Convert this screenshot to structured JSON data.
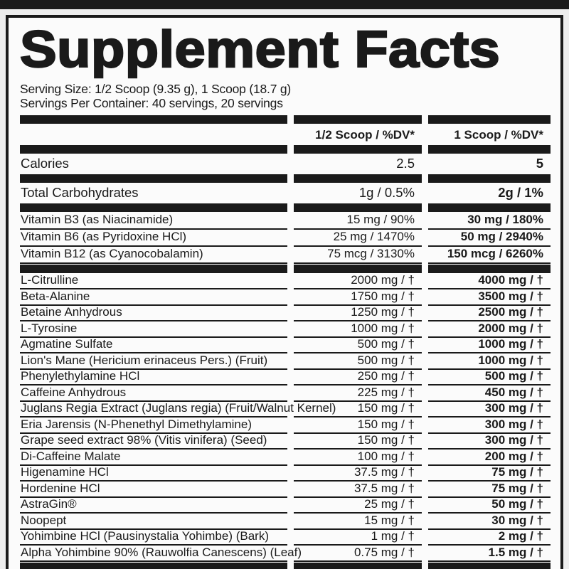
{
  "colors": {
    "ink": "#1a1a1a",
    "paper": "#fbfbfb",
    "page_background": "#ededed"
  },
  "label": {
    "title": "Supplement Facts",
    "serving_size": "Serving Size: 1/2 Scoop (9.35 g), 1 Scoop (18.7 g)",
    "servings_per_container": "Servings Per Container: 40 servings, 20 servings",
    "columns": [
      "1/2 Scoop / %DV*",
      "1 Scoop / %DV*"
    ],
    "sections": {
      "calories": [
        {
          "name": "Calories",
          "half": "2.5",
          "full": "5"
        }
      ],
      "carbohydrates": [
        {
          "name": "Total Carbohydrates",
          "half": "1g / 0.5%",
          "full": "2g / 1%"
        }
      ],
      "vitamins": [
        {
          "name": "Vitamin B3 (as Niacinamide)",
          "half": "15 mg / 90%",
          "full": "30 mg / 180%"
        },
        {
          "name": "Vitamin B6 (as Pyridoxine HCl)",
          "half": "25 mg / 1470%",
          "full": "50 mg / 2940%"
        },
        {
          "name": "Vitamin B12 (as Cyanocobalamin)",
          "half": "75 mcg / 3130%",
          "full": "150 mcg / 6260%"
        }
      ],
      "actives": [
        {
          "name": "L-Citrulline",
          "half": "2000 mg / †",
          "full": "4000 mg / †"
        },
        {
          "name": "Beta-Alanine",
          "half": "1750 mg / †",
          "full": "3500 mg / †"
        },
        {
          "name": "Betaine Anhydrous",
          "half": "1250 mg / †",
          "full": "2500 mg / †"
        },
        {
          "name": "L-Tyrosine",
          "half": "1000 mg / †",
          "full": "2000 mg / †"
        },
        {
          "name": "Agmatine Sulfate",
          "half": "500 mg / †",
          "full": "1000 mg / †"
        },
        {
          "name": "Lion's Mane (Hericium erinaceus Pers.) (Fruit)",
          "half": "500 mg / †",
          "full": "1000 mg / †"
        },
        {
          "name": "Phenylethylamine HCl",
          "half": "250 mg / †",
          "full": "500 mg / †"
        },
        {
          "name": "Caffeine Anhydrous",
          "half": "225 mg / †",
          "full": "450 mg / †"
        },
        {
          "name": "Juglans Regia Extract (Juglans regia) (Fruit/Walnut Kernel)",
          "half": "150 mg / †",
          "full": "300 mg / †"
        },
        {
          "name": "Eria Jarensis (N-Phenethyl Dimethylamine)",
          "half": "150 mg / †",
          "full": "300 mg / †"
        },
        {
          "name": "Grape seed extract 98% (Vitis vinifera) (Seed)",
          "half": "150 mg / †",
          "full": "300 mg / †"
        },
        {
          "name": "Di-Caffeine Malate",
          "half": "100 mg / †",
          "full": "200 mg / †"
        },
        {
          "name": "Higenamine HCl",
          "half": "37.5 mg / †",
          "full": "75 mg / †"
        },
        {
          "name": "Hordenine HCl",
          "half": "37.5 mg / †",
          "full": "75 mg / †"
        },
        {
          "name": "AstraGin®",
          "half": "25 mg / †",
          "full": "50 mg / †"
        },
        {
          "name": "Noopept",
          "half": "15 mg / †",
          "full": "30 mg / †"
        },
        {
          "name": "Yohimbine HCl (Pausinystalia Yohimbe) (Bark)",
          "half": "1 mg / †",
          "full": "2 mg / †"
        },
        {
          "name": "Alpha Yohimbine 90% (Rauwolfia Canescens) (Leaf)",
          "half": "0.75 mg / †",
          "full": "1.5 mg / †"
        }
      ]
    }
  }
}
